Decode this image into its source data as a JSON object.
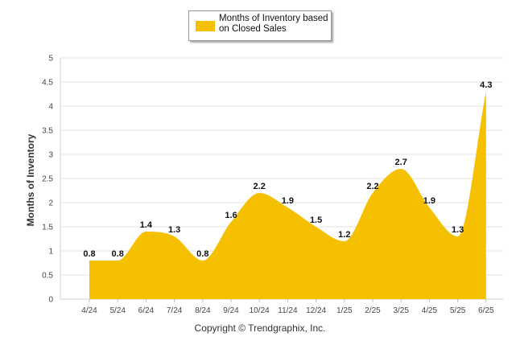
{
  "chart_data": {
    "type": "area",
    "title": "",
    "xlabel": "",
    "ylabel": "Months of Inventory",
    "categories": [
      "4/24",
      "5/24",
      "6/24",
      "7/24",
      "8/24",
      "9/24",
      "10/24",
      "11/24",
      "12/24",
      "1/25",
      "2/25",
      "3/25",
      "4/25",
      "5/25",
      "6/25"
    ],
    "series": [
      {
        "name": "Months of Inventory based on Closed Sales",
        "values": [
          0.8,
          0.8,
          1.4,
          1.3,
          0.8,
          1.6,
          2.2,
          1.9,
          1.5,
          1.2,
          2.2,
          2.7,
          1.9,
          1.3,
          4.3
        ],
        "labels": [
          "0.8",
          "0.8",
          "1.4",
          "1.3",
          "0.8",
          "1.6",
          "2.2",
          "1.9",
          "1.5",
          "1.2",
          "2.2",
          "2.7",
          "1.9",
          "1.3",
          "4.3"
        ],
        "color": "#f5c000"
      }
    ],
    "ylim": [
      0,
      5
    ],
    "yticks": [
      "0",
      "0.5",
      "1",
      "1.5",
      "2",
      "2.5",
      "3",
      "3.5",
      "4",
      "4.5",
      "5"
    ],
    "grid": true,
    "legend_position": "top-center"
  },
  "copyright": "Copyright © Trendgraphix, Inc."
}
